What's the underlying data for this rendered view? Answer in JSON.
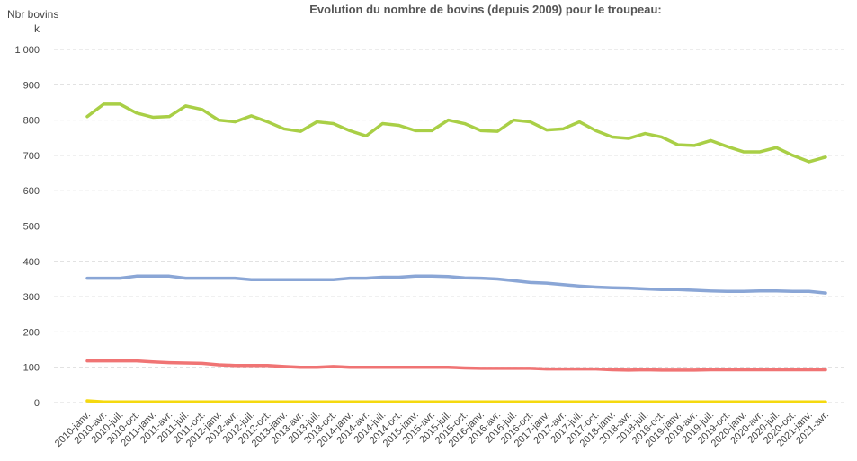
{
  "chart_data": {
    "type": "line",
    "title": "Evolution du nombre de bovins (depuis 2009) pour le troupeau:",
    "y_label": "Nbr bovins",
    "y_unit": "k",
    "categories": [
      "2010-janv.",
      "2010-avr.",
      "2010-juil.",
      "2010-oct.",
      "2011-janv.",
      "2011-avr.",
      "2011-juil.",
      "2011-oct.",
      "2012-janv.",
      "2012-avr.",
      "2012-juil.",
      "2012-oct.",
      "2013-janv.",
      "2013-avr.",
      "2013-juil.",
      "2013-oct.",
      "2014-janv.",
      "2014-avr.",
      "2014-juil.",
      "2014-oct.",
      "2015-janv.",
      "2015-avr.",
      "2015-juil.",
      "2015-oct.",
      "2016-janv.",
      "2016-avr.",
      "2016-juil.",
      "2016-oct.",
      "2017-janv.",
      "2017-avr.",
      "2017-juil.",
      "2017-oct.",
      "2018-janv.",
      "2018-avr.",
      "2018-juil.",
      "2018-oct.",
      "2019-janv.",
      "2019-avr.",
      "2019-juil.",
      "2019-oct.",
      "2020-janv.",
      "2020-avr.",
      "2020-juil.",
      "2020-oct.",
      "2021-janv.",
      "2021-avr."
    ],
    "series": [
      {
        "color": "#a9cf46",
        "values": [
          810,
          845,
          845,
          820,
          808,
          810,
          840,
          830,
          800,
          795,
          812,
          795,
          775,
          768,
          795,
          790,
          770,
          755,
          790,
          785,
          770,
          770,
          800,
          790,
          770,
          768,
          800,
          795,
          772,
          775,
          795,
          770,
          752,
          748,
          762,
          752,
          730,
          728,
          742,
          725,
          710,
          710,
          722,
          700,
          682,
          695
        ]
      },
      {
        "color": "#8aa6d6",
        "values": [
          352,
          352,
          352,
          358,
          358,
          358,
          352,
          352,
          352,
          352,
          348,
          348,
          348,
          348,
          348,
          348,
          352,
          352,
          355,
          355,
          358,
          358,
          357,
          353,
          352,
          350,
          345,
          340,
          338,
          334,
          330,
          327,
          325,
          324,
          322,
          320,
          320,
          318,
          316,
          315,
          315,
          316,
          316,
          315,
          315,
          310
        ]
      },
      {
        "color": "#f07474",
        "values": [
          118,
          118,
          118,
          118,
          115,
          113,
          112,
          111,
          107,
          105,
          105,
          105,
          102,
          100,
          100,
          102,
          100,
          100,
          100,
          100,
          100,
          100,
          100,
          98,
          97,
          97,
          97,
          97,
          95,
          95,
          95,
          95,
          93,
          92,
          93,
          92,
          92,
          92,
          93,
          93,
          93,
          93,
          93,
          93,
          93,
          93
        ]
      },
      {
        "color": "#f5d90f",
        "values": [
          5,
          2,
          2,
          2,
          2,
          2,
          2,
          2,
          2,
          2,
          2,
          2,
          2,
          2,
          2,
          2,
          2,
          2,
          2,
          2,
          2,
          2,
          2,
          2,
          2,
          2,
          2,
          2,
          2,
          2,
          2,
          2,
          2,
          2,
          2,
          2,
          2,
          2,
          2,
          2,
          2,
          2,
          2,
          2,
          2,
          2
        ]
      }
    ],
    "ylim": [
      0,
      1000
    ],
    "yticks": [
      0,
      100,
      200,
      300,
      400,
      500,
      600,
      700,
      800,
      900,
      {
        "value": 1000,
        "label": "1 000"
      }
    ],
    "grid": true
  }
}
